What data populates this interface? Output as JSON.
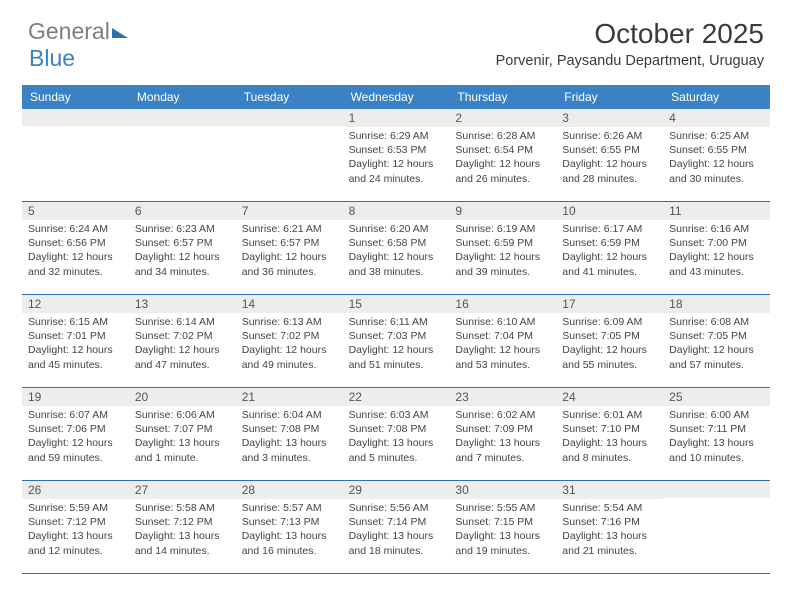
{
  "logo": {
    "part1": "General",
    "part2": "Blue"
  },
  "title": "October 2025",
  "location": "Porvenir, Paysandu Department, Uruguay",
  "colors": {
    "header_bg": "#3b82c4",
    "header_text": "#ffffff",
    "daynum_bg": "#eceded",
    "border": "#2e6fb0",
    "body_text": "#444444",
    "title_text": "#3a3a3a"
  },
  "day_headers": [
    "Sunday",
    "Monday",
    "Tuesday",
    "Wednesday",
    "Thursday",
    "Friday",
    "Saturday"
  ],
  "weeks": [
    [
      {
        "n": "",
        "sunrise": "",
        "sunset": "",
        "daylight": ""
      },
      {
        "n": "",
        "sunrise": "",
        "sunset": "",
        "daylight": ""
      },
      {
        "n": "",
        "sunrise": "",
        "sunset": "",
        "daylight": ""
      },
      {
        "n": "1",
        "sunrise": "Sunrise: 6:29 AM",
        "sunset": "Sunset: 6:53 PM",
        "daylight": "Daylight: 12 hours and 24 minutes."
      },
      {
        "n": "2",
        "sunrise": "Sunrise: 6:28 AM",
        "sunset": "Sunset: 6:54 PM",
        "daylight": "Daylight: 12 hours and 26 minutes."
      },
      {
        "n": "3",
        "sunrise": "Sunrise: 6:26 AM",
        "sunset": "Sunset: 6:55 PM",
        "daylight": "Daylight: 12 hours and 28 minutes."
      },
      {
        "n": "4",
        "sunrise": "Sunrise: 6:25 AM",
        "sunset": "Sunset: 6:55 PM",
        "daylight": "Daylight: 12 hours and 30 minutes."
      }
    ],
    [
      {
        "n": "5",
        "sunrise": "Sunrise: 6:24 AM",
        "sunset": "Sunset: 6:56 PM",
        "daylight": "Daylight: 12 hours and 32 minutes."
      },
      {
        "n": "6",
        "sunrise": "Sunrise: 6:23 AM",
        "sunset": "Sunset: 6:57 PM",
        "daylight": "Daylight: 12 hours and 34 minutes."
      },
      {
        "n": "7",
        "sunrise": "Sunrise: 6:21 AM",
        "sunset": "Sunset: 6:57 PM",
        "daylight": "Daylight: 12 hours and 36 minutes."
      },
      {
        "n": "8",
        "sunrise": "Sunrise: 6:20 AM",
        "sunset": "Sunset: 6:58 PM",
        "daylight": "Daylight: 12 hours and 38 minutes."
      },
      {
        "n": "9",
        "sunrise": "Sunrise: 6:19 AM",
        "sunset": "Sunset: 6:59 PM",
        "daylight": "Daylight: 12 hours and 39 minutes."
      },
      {
        "n": "10",
        "sunrise": "Sunrise: 6:17 AM",
        "sunset": "Sunset: 6:59 PM",
        "daylight": "Daylight: 12 hours and 41 minutes."
      },
      {
        "n": "11",
        "sunrise": "Sunrise: 6:16 AM",
        "sunset": "Sunset: 7:00 PM",
        "daylight": "Daylight: 12 hours and 43 minutes."
      }
    ],
    [
      {
        "n": "12",
        "sunrise": "Sunrise: 6:15 AM",
        "sunset": "Sunset: 7:01 PM",
        "daylight": "Daylight: 12 hours and 45 minutes."
      },
      {
        "n": "13",
        "sunrise": "Sunrise: 6:14 AM",
        "sunset": "Sunset: 7:02 PM",
        "daylight": "Daylight: 12 hours and 47 minutes."
      },
      {
        "n": "14",
        "sunrise": "Sunrise: 6:13 AM",
        "sunset": "Sunset: 7:02 PM",
        "daylight": "Daylight: 12 hours and 49 minutes."
      },
      {
        "n": "15",
        "sunrise": "Sunrise: 6:11 AM",
        "sunset": "Sunset: 7:03 PM",
        "daylight": "Daylight: 12 hours and 51 minutes."
      },
      {
        "n": "16",
        "sunrise": "Sunrise: 6:10 AM",
        "sunset": "Sunset: 7:04 PM",
        "daylight": "Daylight: 12 hours and 53 minutes."
      },
      {
        "n": "17",
        "sunrise": "Sunrise: 6:09 AM",
        "sunset": "Sunset: 7:05 PM",
        "daylight": "Daylight: 12 hours and 55 minutes."
      },
      {
        "n": "18",
        "sunrise": "Sunrise: 6:08 AM",
        "sunset": "Sunset: 7:05 PM",
        "daylight": "Daylight: 12 hours and 57 minutes."
      }
    ],
    [
      {
        "n": "19",
        "sunrise": "Sunrise: 6:07 AM",
        "sunset": "Sunset: 7:06 PM",
        "daylight": "Daylight: 12 hours and 59 minutes."
      },
      {
        "n": "20",
        "sunrise": "Sunrise: 6:06 AM",
        "sunset": "Sunset: 7:07 PM",
        "daylight": "Daylight: 13 hours and 1 minute."
      },
      {
        "n": "21",
        "sunrise": "Sunrise: 6:04 AM",
        "sunset": "Sunset: 7:08 PM",
        "daylight": "Daylight: 13 hours and 3 minutes."
      },
      {
        "n": "22",
        "sunrise": "Sunrise: 6:03 AM",
        "sunset": "Sunset: 7:08 PM",
        "daylight": "Daylight: 13 hours and 5 minutes."
      },
      {
        "n": "23",
        "sunrise": "Sunrise: 6:02 AM",
        "sunset": "Sunset: 7:09 PM",
        "daylight": "Daylight: 13 hours and 7 minutes."
      },
      {
        "n": "24",
        "sunrise": "Sunrise: 6:01 AM",
        "sunset": "Sunset: 7:10 PM",
        "daylight": "Daylight: 13 hours and 8 minutes."
      },
      {
        "n": "25",
        "sunrise": "Sunrise: 6:00 AM",
        "sunset": "Sunset: 7:11 PM",
        "daylight": "Daylight: 13 hours and 10 minutes."
      }
    ],
    [
      {
        "n": "26",
        "sunrise": "Sunrise: 5:59 AM",
        "sunset": "Sunset: 7:12 PM",
        "daylight": "Daylight: 13 hours and 12 minutes."
      },
      {
        "n": "27",
        "sunrise": "Sunrise: 5:58 AM",
        "sunset": "Sunset: 7:12 PM",
        "daylight": "Daylight: 13 hours and 14 minutes."
      },
      {
        "n": "28",
        "sunrise": "Sunrise: 5:57 AM",
        "sunset": "Sunset: 7:13 PM",
        "daylight": "Daylight: 13 hours and 16 minutes."
      },
      {
        "n": "29",
        "sunrise": "Sunrise: 5:56 AM",
        "sunset": "Sunset: 7:14 PM",
        "daylight": "Daylight: 13 hours and 18 minutes."
      },
      {
        "n": "30",
        "sunrise": "Sunrise: 5:55 AM",
        "sunset": "Sunset: 7:15 PM",
        "daylight": "Daylight: 13 hours and 19 minutes."
      },
      {
        "n": "31",
        "sunrise": "Sunrise: 5:54 AM",
        "sunset": "Sunset: 7:16 PM",
        "daylight": "Daylight: 13 hours and 21 minutes."
      },
      {
        "n": "",
        "sunrise": "",
        "sunset": "",
        "daylight": ""
      }
    ]
  ]
}
